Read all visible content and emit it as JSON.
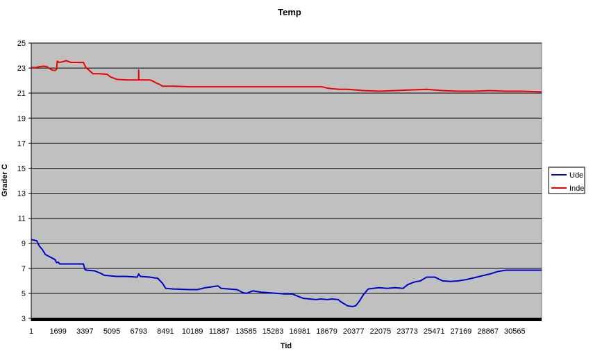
{
  "chart_data": {
    "type": "line",
    "title": "Temp",
    "xlabel": "Tid",
    "ylabel": "Grader C",
    "ylim": [
      3,
      25
    ],
    "yticks": [
      3,
      5,
      7,
      9,
      11,
      13,
      15,
      17,
      19,
      21,
      23,
      25
    ],
    "xlim": [
      1,
      32262
    ],
    "xticks": [
      "1",
      "1699",
      "3397",
      "5095",
      "6793",
      "8491",
      "10189",
      "11887",
      "13585",
      "15283",
      "16981",
      "18679",
      "20377",
      "22075",
      "23773",
      "25471",
      "27169",
      "28867",
      "30565"
    ],
    "grid": "horizontal",
    "plot_background": "#c0c0c0",
    "legend_position": "right",
    "series": [
      {
        "name": "Ude",
        "color": "#0000cc",
        "x": [
          1,
          350,
          500,
          700,
          900,
          1200,
          1500,
          1600,
          1700,
          1800,
          2200,
          2500,
          3300,
          3400,
          3500,
          4000,
          4400,
          4600,
          5000,
          5400,
          6000,
          6700,
          6793,
          6900,
          7500,
          8000,
          8300,
          8500,
          9000,
          10000,
          10500,
          11000,
          11300,
          11800,
          12000,
          12500,
          13000,
          13400,
          13600,
          14000,
          14500,
          15000,
          15500,
          16000,
          16500,
          16800,
          17200,
          17600,
          18000,
          18300,
          18700,
          19000,
          19400,
          19600,
          20000,
          20300,
          20500,
          20700,
          21000,
          21300,
          21600,
          22000,
          22500,
          23000,
          23500,
          23800,
          24200,
          24600,
          25000,
          25500,
          26000,
          26500,
          27000,
          27500,
          28000,
          28500,
          29000,
          29500,
          30000,
          30600,
          31200,
          32262
        ],
        "values": [
          9.3,
          9.2,
          8.8,
          8.5,
          8.1,
          7.9,
          7.7,
          7.45,
          7.5,
          7.35,
          7.35,
          7.35,
          7.35,
          6.9,
          6.85,
          6.8,
          6.6,
          6.45,
          6.4,
          6.35,
          6.35,
          6.3,
          6.55,
          6.35,
          6.3,
          6.2,
          5.8,
          5.4,
          5.35,
          5.3,
          5.3,
          5.45,
          5.5,
          5.6,
          5.4,
          5.35,
          5.3,
          5.05,
          5.0,
          5.2,
          5.1,
          5.05,
          5.0,
          4.95,
          4.95,
          4.8,
          4.6,
          4.55,
          4.5,
          4.55,
          4.5,
          4.55,
          4.5,
          4.3,
          4.0,
          3.95,
          4.0,
          4.3,
          4.9,
          5.35,
          5.4,
          5.45,
          5.4,
          5.45,
          5.4,
          5.7,
          5.9,
          6.0,
          6.3,
          6.3,
          6.0,
          5.95,
          6.0,
          6.1,
          6.25,
          6.4,
          6.55,
          6.75,
          6.85,
          6.85,
          6.85,
          6.85
        ]
      },
      {
        "name": "Inde",
        "color": "#ee0000",
        "x": [
          1,
          300,
          500,
          800,
          1000,
          1300,
          1500,
          1600,
          1650,
          1750,
          2000,
          2200,
          2500,
          3000,
          3300,
          3450,
          3500,
          3900,
          4300,
          4800,
          5000,
          5400,
          6000,
          6600,
          6790,
          6793,
          6800,
          6850,
          7100,
          7500,
          7700,
          7900,
          8100,
          8300,
          8491,
          9000,
          10000,
          11000,
          12000,
          13000,
          14000,
          15000,
          16000,
          17000,
          18000,
          18400,
          18700,
          19000,
          19500,
          20000,
          20500,
          21000,
          22000,
          23000,
          24000,
          25000,
          26000,
          27000,
          28000,
          29000,
          30000,
          31000,
          32262
        ],
        "values": [
          23.05,
          23.05,
          23.1,
          23.15,
          23.1,
          22.85,
          22.8,
          22.9,
          23.55,
          23.45,
          23.5,
          23.6,
          23.45,
          23.45,
          23.45,
          23.05,
          23.0,
          22.55,
          22.55,
          22.5,
          22.3,
          22.1,
          22.05,
          22.05,
          22.05,
          22.85,
          22.05,
          22.05,
          22.05,
          22.05,
          21.95,
          21.8,
          21.7,
          21.55,
          21.55,
          21.55,
          21.5,
          21.5,
          21.5,
          21.5,
          21.5,
          21.5,
          21.5,
          21.5,
          21.5,
          21.5,
          21.4,
          21.35,
          21.3,
          21.3,
          21.25,
          21.2,
          21.15,
          21.2,
          21.25,
          21.3,
          21.2,
          21.15,
          21.15,
          21.2,
          21.15,
          21.15,
          21.1
        ]
      }
    ]
  }
}
